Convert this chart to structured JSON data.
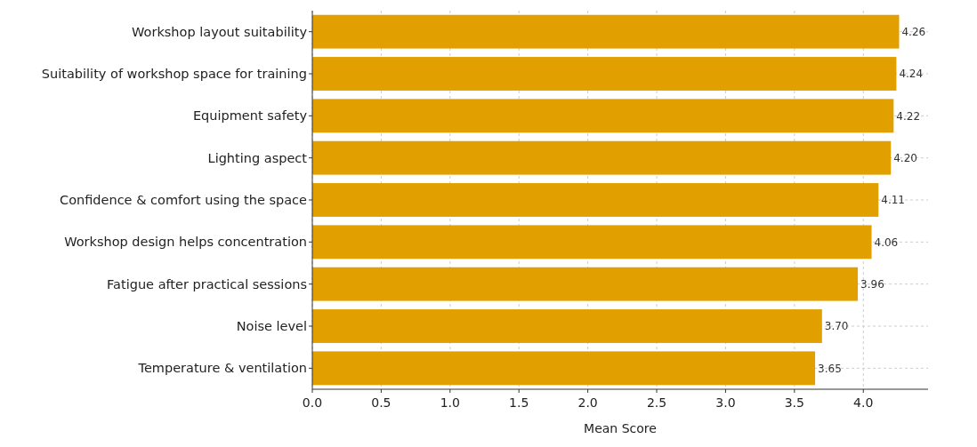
{
  "chart_data": {
    "type": "bar",
    "orientation": "horizontal",
    "xlabel": "Mean Score",
    "categories": [
      "Workshop layout suitability",
      "Suitability of workshop space for training",
      "Equipment safety",
      "Lighting aspect",
      "Confidence & comfort using the space",
      "Workshop design helps concentration",
      "Fatigue after practical sessions",
      "Noise level",
      "Temperature & ventilation"
    ],
    "values": [
      4.26,
      4.24,
      4.22,
      4.2,
      4.11,
      4.06,
      3.96,
      3.7,
      3.65
    ],
    "value_labels": [
      "4.26",
      "4.24",
      "4.22",
      "4.20",
      "4.11",
      "4.06",
      "3.96",
      "3.70",
      "3.65"
    ],
    "color": "#e29f00",
    "xlim": [
      0,
      4.47
    ],
    "xticks": [
      {
        "value": 0,
        "label": "0.0"
      },
      {
        "value": 0.5,
        "label": "0.5"
      },
      {
        "value": 1,
        "label": "1.0"
      },
      {
        "value": 1.5,
        "label": "1.5"
      },
      {
        "value": 2,
        "label": "2.0"
      },
      {
        "value": 2.5,
        "label": "2.5"
      },
      {
        "value": 3,
        "label": "3.0"
      },
      {
        "value": 3.5,
        "label": "3.5"
      },
      {
        "value": 4,
        "label": "4.0"
      }
    ],
    "grid": true
  }
}
